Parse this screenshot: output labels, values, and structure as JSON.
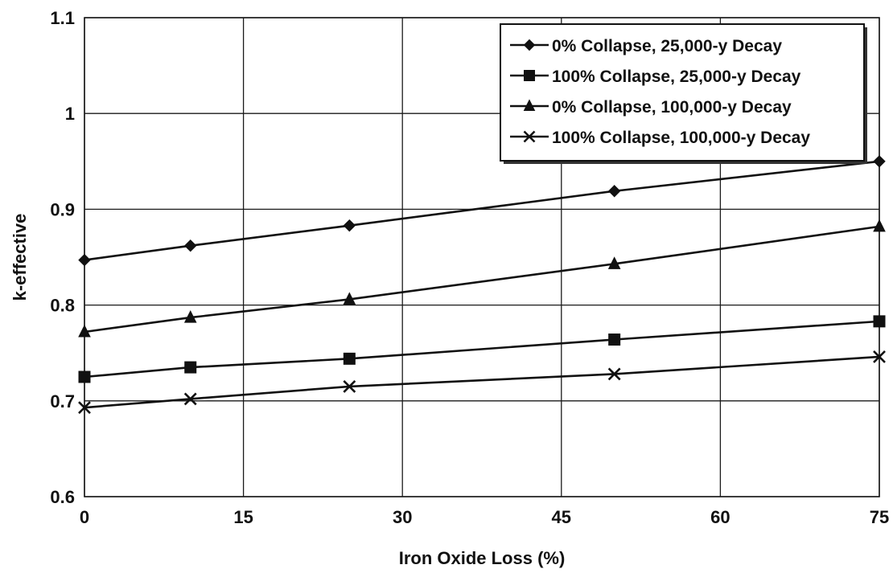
{
  "chart_data": {
    "type": "line",
    "xlabel": "Iron Oxide Loss (%)",
    "ylabel": "k-effective",
    "xlim": [
      0,
      75
    ],
    "ylim": [
      0.6,
      1.1
    ],
    "x_ticks": [
      "0",
      "15",
      "30",
      "45",
      "60",
      "75"
    ],
    "y_ticks": [
      "0.6",
      "0.7",
      "0.8",
      "0.9",
      "1",
      "1.1"
    ],
    "grid": true,
    "legend_position": "top-right",
    "x": [
      0,
      10,
      25,
      50,
      75
    ],
    "series": [
      {
        "name": "0% Collapse, 25,000-y Decay",
        "marker": "diamond",
        "values": [
          0.847,
          0.862,
          0.883,
          0.919,
          0.95
        ]
      },
      {
        "name": "100% Collapse, 25,000-y Decay",
        "marker": "square",
        "values": [
          0.725,
          0.735,
          0.744,
          0.764,
          0.783
        ]
      },
      {
        "name": "0% Collapse, 100,000-y Decay",
        "marker": "triangle",
        "values": [
          0.772,
          0.787,
          0.806,
          0.843,
          0.882
        ]
      },
      {
        "name": "100% Collapse, 100,000-y Decay",
        "marker": "x",
        "values": [
          0.693,
          0.702,
          0.715,
          0.728,
          0.746
        ]
      }
    ]
  }
}
